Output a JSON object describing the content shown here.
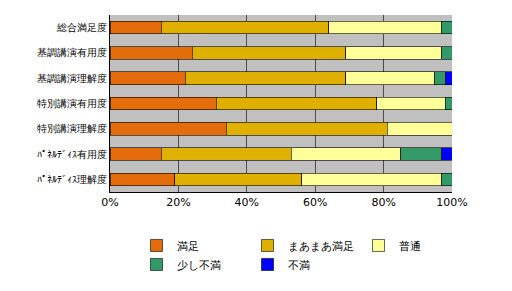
{
  "chart_data": {
    "type": "bar",
    "orientation": "horizontal",
    "stacked": true,
    "categories": [
      "総合満足度",
      "基調講演有用度",
      "基調講演理解度",
      "特別講演有用度",
      "特別講演理解度",
      "ﾊﾟﾈﾙﾃﾞｨｽ有用度",
      "ﾊﾟﾈﾙﾃﾞｨｽ理解度"
    ],
    "series": [
      {
        "name": "満足",
        "color": "#E46C0A",
        "values": [
          15,
          24,
          22,
          31,
          34,
          15,
          19
        ]
      },
      {
        "name": "まあまあ満足",
        "color": "#E0B000",
        "values": [
          49,
          45,
          47,
          47,
          47,
          38,
          37
        ]
      },
      {
        "name": "普通",
        "color": "#FFFF99",
        "values": [
          33,
          28,
          26,
          20,
          19,
          32,
          41
        ]
      },
      {
        "name": "少し不満",
        "color": "#339966",
        "values": [
          3,
          3,
          3,
          2,
          0,
          12,
          3
        ]
      },
      {
        "name": "不満",
        "color": "#0000FF",
        "values": [
          0,
          0,
          2,
          0,
          0,
          3,
          0
        ]
      }
    ],
    "xlim": [
      0,
      100
    ],
    "xticks": [
      {
        "value": 0,
        "label": "0%"
      },
      {
        "value": 20,
        "label": "20%"
      },
      {
        "value": 40,
        "label": "40%"
      },
      {
        "value": 60,
        "label": "60%"
      },
      {
        "value": 80,
        "label": "80%"
      },
      {
        "value": 100,
        "label": "100%"
      }
    ],
    "grid": true,
    "legend": "bottom"
  }
}
